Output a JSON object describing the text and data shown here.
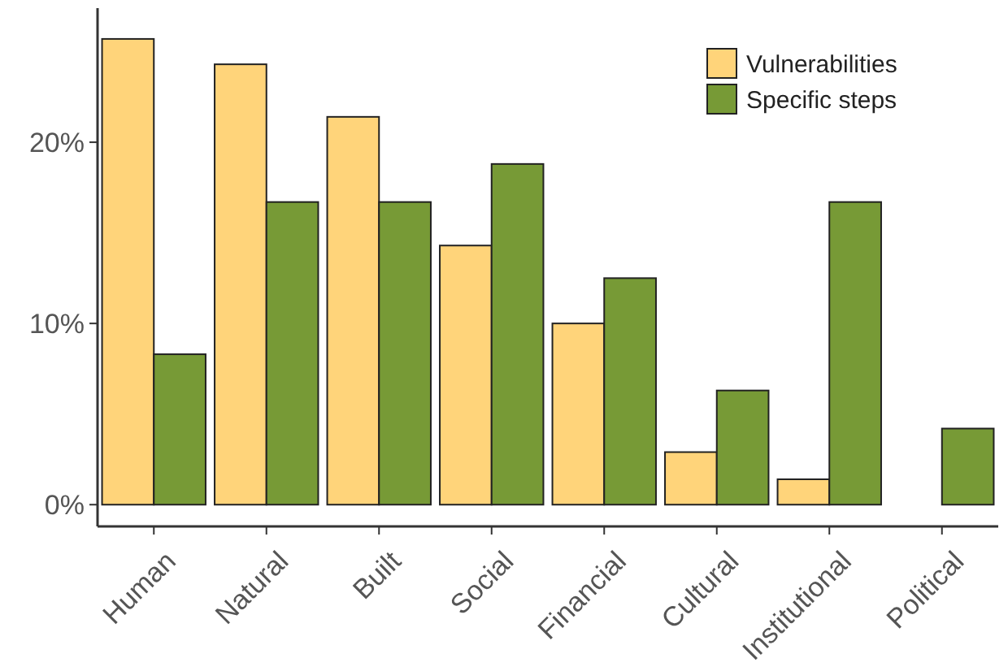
{
  "chart_data": {
    "type": "bar",
    "categories": [
      "Human",
      "Natural",
      "Built",
      "Social",
      "Financial",
      "Cultural",
      "Institutional",
      "Political"
    ],
    "series": [
      {
        "name": "Vulnerabilities",
        "color": "#ffd47a",
        "values": [
          25.7,
          24.3,
          21.4,
          14.3,
          10,
          2.9,
          1.4,
          0
        ]
      },
      {
        "name": "Specific steps",
        "color": "#779a36",
        "values": [
          8.3,
          16.7,
          16.7,
          18.8,
          12.5,
          6.3,
          16.7,
          4.2
        ]
      }
    ],
    "ylim": [
      -1.2,
      27.4
    ],
    "yticks": [
      {
        "value": 0,
        "label": "0%"
      },
      {
        "value": 10,
        "label": "10%"
      },
      {
        "value": 20,
        "label": "20%"
      }
    ],
    "grid": false,
    "legend": "top right"
  }
}
